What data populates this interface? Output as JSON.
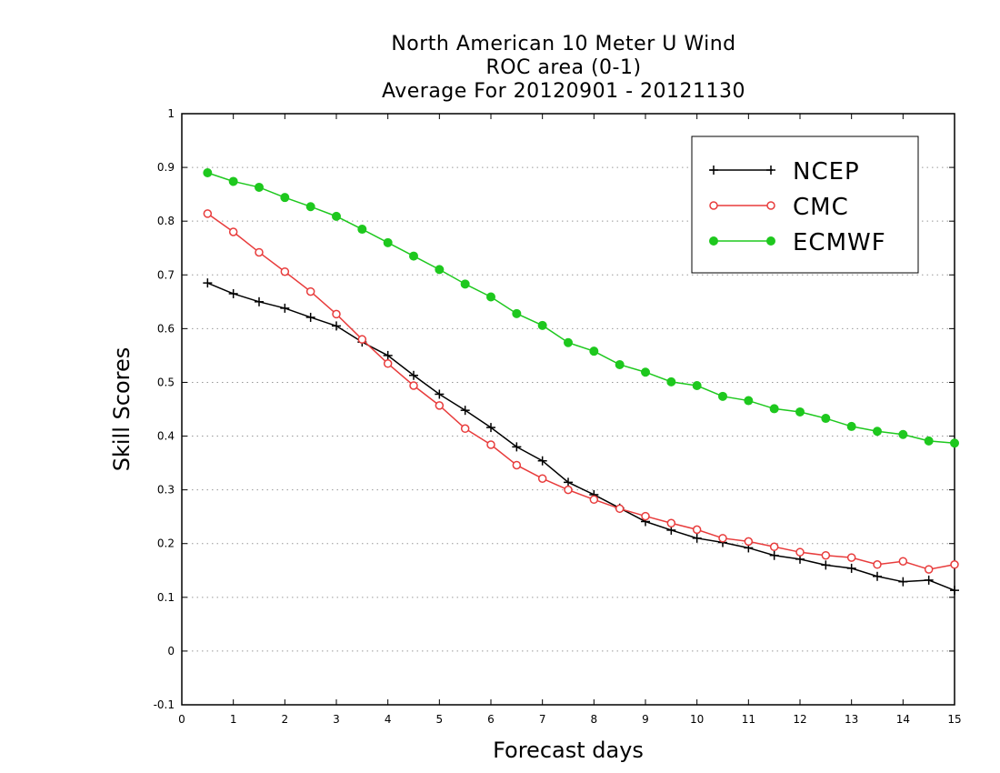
{
  "chart_data": {
    "type": "line",
    "title_lines": [
      "North American 10 Meter U Wind",
      "ROC area (0-1)",
      "Average For 20120901 - 20121130"
    ],
    "xlabel": "Forecast days",
    "ylabel": "Skill Scores",
    "xlim": [
      0,
      15
    ],
    "ylim": [
      -0.1,
      1
    ],
    "x_ticks": [
      "0",
      "1",
      "2",
      "3",
      "4",
      "5",
      "6",
      "7",
      "8",
      "9",
      "10",
      "11",
      "12",
      "13",
      "14",
      "15"
    ],
    "y_ticks": [
      "-0.1",
      "0",
      "0.1",
      "0.2",
      "0.3",
      "0.4",
      "0.5",
      "0.6",
      "0.7",
      "0.8",
      "0.9",
      "1"
    ],
    "grid": "horizontal dotted",
    "legend_position": "top-right",
    "x": [
      0.5,
      1,
      1.5,
      2,
      2.5,
      3,
      3.5,
      4,
      4.5,
      5,
      5.5,
      6,
      6.5,
      7,
      7.5,
      8,
      8.5,
      9,
      9.5,
      10,
      10.5,
      11,
      11.5,
      12,
      12.5,
      13,
      13.5,
      14,
      14.5,
      15
    ],
    "series": [
      {
        "name": "NCEP",
        "color": "#000000",
        "marker": "plus",
        "values": [
          0.685,
          0.665,
          0.65,
          0.638,
          0.621,
          0.605,
          0.575,
          0.55,
          0.513,
          0.478,
          0.448,
          0.416,
          0.38,
          0.354,
          0.314,
          0.291,
          0.266,
          0.241,
          0.225,
          0.21,
          0.202,
          0.192,
          0.178,
          0.171,
          0.16,
          0.154,
          0.139,
          0.129,
          0.132,
          0.113
        ]
      },
      {
        "name": "CMC",
        "color": "#e83c3c",
        "marker": "circle-open",
        "values": [
          0.814,
          0.78,
          0.742,
          0.706,
          0.669,
          0.627,
          0.58,
          0.535,
          0.494,
          0.457,
          0.414,
          0.384,
          0.346,
          0.321,
          0.3,
          0.282,
          0.265,
          0.251,
          0.238,
          0.226,
          0.21,
          0.204,
          0.194,
          0.184,
          0.178,
          0.174,
          0.161,
          0.167,
          0.152,
          0.161
        ]
      },
      {
        "name": "ECMWF",
        "color": "#1ec81e",
        "marker": "circle-filled",
        "values": [
          0.89,
          0.874,
          0.863,
          0.844,
          0.827,
          0.809,
          0.785,
          0.76,
          0.735,
          0.71,
          0.683,
          0.659,
          0.628,
          0.606,
          0.574,
          0.558,
          0.533,
          0.519,
          0.501,
          0.494,
          0.474,
          0.466,
          0.451,
          0.445,
          0.433,
          0.418,
          0.409,
          0.403,
          0.391,
          0.387
        ]
      }
    ]
  }
}
